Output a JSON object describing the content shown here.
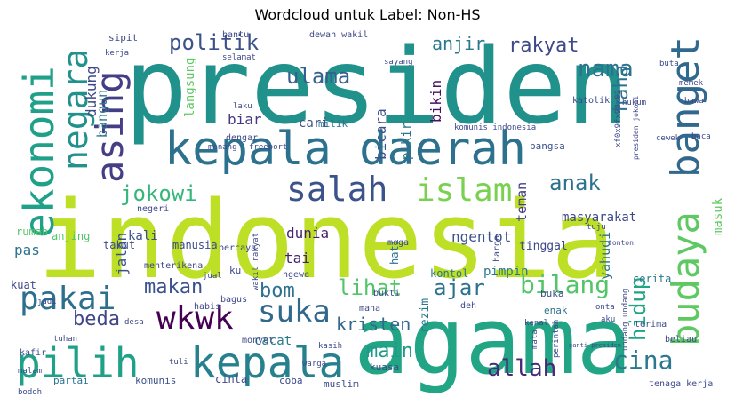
{
  "chart_data": {
    "type": "wordcloud",
    "title": "Wordcloud untuk Label: Non-HS",
    "words": [
      {
        "text": "presiden",
        "weight": 100,
        "color": "#21918c"
      },
      {
        "text": "indonesia",
        "weight": 98,
        "color": "#bddf26"
      },
      {
        "text": "agama",
        "weight": 92,
        "color": "#21a585"
      },
      {
        "text": "kepala daerah",
        "weight": 55,
        "color": "#2c728e"
      },
      {
        "text": "pilih",
        "weight": 50,
        "color": "#1fa187"
      },
      {
        "text": "kepala",
        "weight": 48,
        "color": "#27808e"
      },
      {
        "text": "ekonomi",
        "weight": 45,
        "color": "#1fa088"
      },
      {
        "text": "banget",
        "weight": 40,
        "color": "#31688e"
      },
      {
        "text": "negara",
        "weight": 38,
        "color": "#21918c"
      },
      {
        "text": "asing",
        "weight": 42,
        "color": "#433e85"
      },
      {
        "text": "budaya",
        "weight": 42,
        "color": "#5ec962"
      },
      {
        "text": "salah",
        "weight": 38,
        "color": "#3b528b"
      },
      {
        "text": "islam",
        "weight": 38,
        "color": "#7ad151"
      },
      {
        "text": "wkwk",
        "weight": 36,
        "color": "#440154"
      },
      {
        "text": "pakai",
        "weight": 36,
        "color": "#2d708e"
      },
      {
        "text": "suka",
        "weight": 34,
        "color": "#31688e"
      },
      {
        "text": "politik",
        "weight": 25,
        "color": "#3b528b"
      },
      {
        "text": "ulama",
        "weight": 24,
        "color": "#355f8d"
      },
      {
        "text": "jokowi",
        "weight": 24,
        "color": "#35b779"
      },
      {
        "text": "nama",
        "weight": 24,
        "color": "#2c728e"
      },
      {
        "text": "rakyat",
        "weight": 20,
        "color": "#3e4989"
      },
      {
        "text": "anjir",
        "weight": 18,
        "color": "#2a788e"
      },
      {
        "text": "anak",
        "weight": 22,
        "color": "#2c728e"
      },
      {
        "text": "bilang",
        "weight": 26,
        "color": "#52c569"
      },
      {
        "text": "lihat",
        "weight": 22,
        "color": "#52c569"
      },
      {
        "text": "ajar",
        "weight": 22,
        "color": "#2c728e"
      },
      {
        "text": "hidup",
        "weight": 22,
        "color": "#20a486"
      },
      {
        "text": "cina",
        "weight": 24,
        "color": "#2a788e"
      },
      {
        "text": "allah",
        "weight": 22,
        "color": "#482878"
      },
      {
        "text": "makan",
        "weight": 20,
        "color": "#3b528b"
      },
      {
        "text": "bom",
        "weight": 20,
        "color": "#2c728e"
      },
      {
        "text": "beda",
        "weight": 22,
        "color": "#404688"
      },
      {
        "text": "kristen",
        "weight": 18,
        "color": "#31688e"
      },
      {
        "text": "main",
        "weight": 20,
        "color": "#1f9a8a"
      },
      {
        "text": "haha",
        "weight": 18,
        "color": "#2c728e"
      },
      {
        "text": "dukung",
        "weight": 15,
        "color": "#3e4989"
      },
      {
        "text": "bicara",
        "weight": 15,
        "color": "#3b528b"
      },
      {
        "text": "bikin",
        "weight": 15,
        "color": "#471164"
      },
      {
        "text": "bangun",
        "weight": 14,
        "color": "#2a788e"
      },
      {
        "text": "langsung",
        "weight": 13,
        "color": "#5ec962"
      },
      {
        "text": "biar",
        "weight": 14,
        "color": "#443a83"
      },
      {
        "text": "cari",
        "weight": 13,
        "color": "#3b528b"
      },
      {
        "text": "milik",
        "weight": 11,
        "color": "#2c728e"
      },
      {
        "text": "pikir",
        "weight": 14,
        "color": "#2c728e"
      },
      {
        "text": "teman",
        "weight": 14,
        "color": "#433e85"
      },
      {
        "text": "yahudi",
        "weight": 14,
        "color": "#2c728e"
      },
      {
        "text": "masuk",
        "weight": 13,
        "color": "#5ec962"
      },
      {
        "text": "dunia",
        "weight": 14,
        "color": "#481f70"
      },
      {
        "text": "kali",
        "weight": 13,
        "color": "#3b528b"
      },
      {
        "text": "tai",
        "weight": 14,
        "color": "#481f70"
      },
      {
        "text": "jalan",
        "weight": 14,
        "color": "#3b528b"
      },
      {
        "text": "pas",
        "weight": 14,
        "color": "#2c728e"
      },
      {
        "text": "ngentot",
        "weight": 14,
        "color": "#3b528b"
      },
      {
        "text": "tinggal",
        "weight": 12,
        "color": "#3e4989"
      },
      {
        "text": "pimpin",
        "weight": 13,
        "color": "#2a788e"
      },
      {
        "text": "kontol",
        "weight": 12,
        "color": "#2c728e"
      },
      {
        "text": "hati",
        "weight": 12,
        "color": "#2c728e"
      },
      {
        "text": "rezim",
        "weight": 12,
        "color": "#2a788e"
      },
      {
        "text": "masyarakat",
        "weight": 12,
        "color": "#3e4989"
      },
      {
        "text": "bangsa",
        "weight": 11,
        "color": "#3b528b"
      },
      {
        "text": "cerita",
        "weight": 11,
        "color": "#2a788e"
      },
      {
        "text": "cacat",
        "weight": 12,
        "color": "#2a788e"
      },
      {
        "text": "coba",
        "weight": 10,
        "color": "#3e4989"
      },
      {
        "text": "muslim",
        "weight": 10,
        "color": "#3e4989"
      },
      {
        "text": "partai",
        "weight": 10,
        "color": "#2c728e"
      },
      {
        "text": "komunis",
        "weight": 10,
        "color": "#3b528b"
      },
      {
        "text": "cinta",
        "weight": 10,
        "color": "#3e4989"
      },
      {
        "text": "kuasa",
        "weight": 10,
        "color": "#3e4989"
      },
      {
        "text": "tenaga kerja",
        "weight": 9,
        "color": "#3e4989"
      },
      {
        "text": "undang undang",
        "weight": 8,
        "color": "#3e4989"
      },
      {
        "text": "terima",
        "weight": 9,
        "color": "#3e4989"
      },
      {
        "text": "beliau",
        "weight": 9,
        "color": "#3e4989"
      },
      {
        "text": "buka",
        "weight": 10,
        "color": "#3e4989"
      },
      {
        "text": "enak",
        "weight": 10,
        "color": "#2c728e"
      },
      {
        "text": "harga",
        "weight": 9,
        "color": "#3e4989"
      },
      {
        "text": "manusia",
        "weight": 10,
        "color": "#3e4989"
      },
      {
        "text": "menterikena",
        "weight": 9,
        "color": "#3e4989"
      },
      {
        "text": "kuat",
        "weight": 10,
        "color": "#3e4989"
      },
      {
        "text": "rumah",
        "weight": 10,
        "color": "#52c569"
      },
      {
        "text": "takut",
        "weight": 10,
        "color": "#3e4989"
      },
      {
        "text": "anjing",
        "weight": 10,
        "color": "#52c569"
      },
      {
        "text": "ngewe",
        "weight": 9,
        "color": "#3e4989"
      },
      {
        "text": "bukti",
        "weight": 9,
        "color": "#3e4989"
      },
      {
        "text": "percaya",
        "weight": 9,
        "color": "#3e4989"
      },
      {
        "text": "moga",
        "weight": 9,
        "color": "#3e4989"
      },
      {
        "text": "negeri",
        "weight": 9,
        "color": "#3e4989"
      },
      {
        "text": "dengar",
        "weight": 9,
        "color": "#3e4989"
      },
      {
        "text": "menang",
        "weight": 8,
        "color": "#3e4989"
      },
      {
        "text": "freeport",
        "weight": 8,
        "color": "#3e4989"
      },
      {
        "text": "komunis indonesia",
        "weight": 8,
        "color": "#3e4989"
      },
      {
        "text": "xf0x9fx98x82",
        "weight": 8,
        "color": "#3e4989"
      },
      {
        "text": "presiden jokowi",
        "weight": 7,
        "color": "#3e4989"
      },
      {
        "text": "cewek",
        "weight": 8,
        "color": "#3e4989"
      },
      {
        "text": "baca",
        "weight": 9,
        "color": "#3e4989"
      },
      {
        "text": "wakil rakyat",
        "weight": 8,
        "color": "#3e4989"
      },
      {
        "text": "jual",
        "weight": 8,
        "color": "#3e4989"
      },
      {
        "text": "ku",
        "weight": 9,
        "color": "#3e4989"
      },
      {
        "text": "mana",
        "weight": 9,
        "color": "#3e4989"
      },
      {
        "text": "deh",
        "weight": 8,
        "color": "#3e4989"
      },
      {
        "text": "kenal",
        "weight": 8,
        "color": "#3e4989"
      },
      {
        "text": "mata",
        "weight": 8,
        "color": "#3e4989"
      },
      {
        "text": "perintah",
        "weight": 8,
        "color": "#3e4989"
      },
      {
        "text": "onta",
        "weight": 8,
        "color": "#3e4989"
      },
      {
        "text": "aku",
        "weight": 8,
        "color": "#3e4989"
      },
      {
        "text": "ganti presiden",
        "weight": 6,
        "color": "#3e4989"
      },
      {
        "text": "habis",
        "weight": 9,
        "color": "#3e4989"
      },
      {
        "text": "bagus",
        "weight": 9,
        "color": "#3e4989"
      },
      {
        "text": "desa",
        "weight": 8,
        "color": "#3e4989"
      },
      {
        "text": "jadi",
        "weight": 8,
        "color": "#3e4989"
      },
      {
        "text": "tuhan",
        "weight": 8,
        "color": "#3e4989"
      },
      {
        "text": "kafir",
        "weight": 9,
        "color": "#3e4989"
      },
      {
        "text": "malam",
        "weight": 8,
        "color": "#3e4989"
      },
      {
        "text": "bodoh",
        "weight": 8,
        "color": "#3e4989"
      },
      {
        "text": "tuli",
        "weight": 8,
        "color": "#3e4989"
      },
      {
        "text": "monyet",
        "weight": 9,
        "color": "#3e4989"
      },
      {
        "text": "kasih",
        "weight": 8,
        "color": "#3e4989"
      },
      {
        "text": "warga",
        "weight": 8,
        "color": "#3e4989"
      },
      {
        "text": "bantu",
        "weight": 9,
        "color": "#3e4989"
      },
      {
        "text": "dewan wakil",
        "weight": 8,
        "color": "#3e4989"
      },
      {
        "text": "selamat",
        "weight": 8,
        "color": "#3e4989"
      },
      {
        "text": "sipit",
        "weight": 9,
        "color": "#3e4989"
      },
      {
        "text": "kerja",
        "weight": 8,
        "color": "#3e4989"
      },
      {
        "text": "sayang",
        "weight": 8,
        "color": "#3e4989"
      },
      {
        "text": "katolik",
        "weight": 8,
        "color": "#3e4989"
      },
      {
        "text": "hukum",
        "weight": 8,
        "color": "#3e4989"
      },
      {
        "text": "buta",
        "weight": 8,
        "color": "#3e4989"
      },
      {
        "text": "memek",
        "weight": 8,
        "color": "#3e4989"
      },
      {
        "text": "bawa",
        "weight": 8,
        "color": "#3e4989"
      },
      {
        "text": "laku",
        "weight": 8,
        "color": "#3e4989"
      },
      {
        "text": "tuju",
        "weight": 8,
        "color": "#3e4989"
      },
      {
        "text": "tonton",
        "weight": 7,
        "color": "#3e4989"
      }
    ]
  }
}
